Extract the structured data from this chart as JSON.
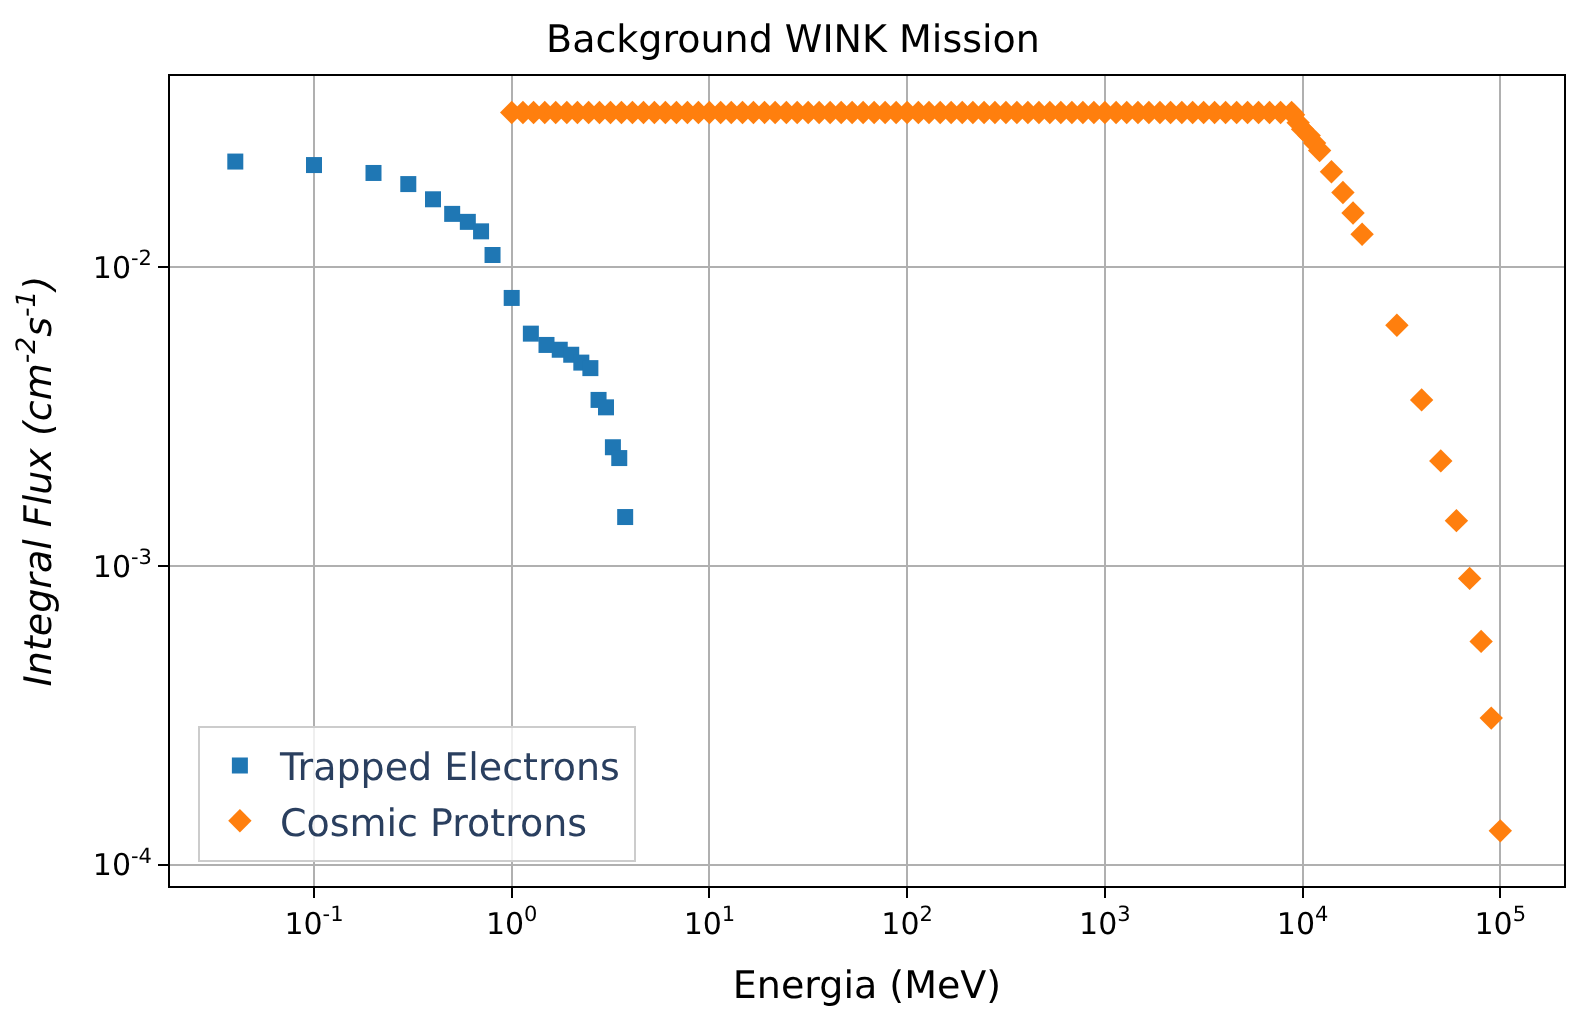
{
  "chart_data": {
    "type": "scatter",
    "title": "Background WINK Mission",
    "xlabel": "Energia (MeV)",
    "ylabel": "Integral Flux (cm$^{-2}$s$^{-1}$)",
    "log": "xy",
    "grid": true,
    "legend": "bottom left",
    "xlim": [
      0.0187,
      210000
    ],
    "ylim": [
      8.5e-05,
      0.0437
    ],
    "xticks": [
      {
        "value": 0.1,
        "label": "10$^{-1}$"
      },
      {
        "value": 1,
        "label": "10$^{0}$"
      },
      {
        "value": 10,
        "label": "10$^{1}$"
      },
      {
        "value": 100,
        "label": "10$^{2}$"
      },
      {
        "value": 1000,
        "label": "10$^{3}$"
      },
      {
        "value": 10000,
        "label": "10$^{4}$"
      },
      {
        "value": 100000,
        "label": "10$^{5}$"
      }
    ],
    "yticks": [
      {
        "value": 0.0001,
        "label": "10$^{-4}$"
      },
      {
        "value": 0.001,
        "label": "10$^{-3}$"
      },
      {
        "value": 0.01,
        "label": "10$^{-2}$"
      }
    ],
    "series": [
      {
        "name": "Trapped Electrons",
        "color": "#1f77b4",
        "marker": "square",
        "x": [
          0.04,
          0.1,
          0.2,
          0.3,
          0.4,
          0.5,
          0.6,
          0.7,
          0.8,
          1.0,
          1.25,
          1.5,
          1.75,
          2.0,
          2.25,
          2.5,
          2.75,
          3.0,
          3.25,
          3.5,
          3.75
        ],
        "values": [
          0.0226,
          0.022,
          0.0207,
          0.019,
          0.0169,
          0.0151,
          0.0142,
          0.0132,
          0.011,
          0.0079,
          0.006,
          0.0055,
          0.0053,
          0.0051,
          0.0048,
          0.0046,
          0.0036,
          0.0034,
          0.0025,
          0.0023,
          0.00146
        ]
      },
      {
        "name": "Cosmic Protrons",
        "color": "#ff7f0e",
        "marker": "diamond",
        "x": [
          1.0,
          1.14,
          1.29,
          1.47,
          1.67,
          1.9,
          2.15,
          2.45,
          2.78,
          3.16,
          3.59,
          4.08,
          4.64,
          5.27,
          5.99,
          6.81,
          7.74,
          8.8,
          10,
          11.4,
          12.9,
          14.7,
          16.7,
          19,
          21.5,
          24.5,
          27.8,
          31.6,
          35.9,
          40.8,
          46.4,
          52.7,
          59.9,
          68.1,
          77.4,
          88,
          100,
          114,
          129,
          147,
          167,
          190,
          215,
          245,
          278,
          316,
          359,
          408,
          464,
          527,
          599,
          681,
          774,
          880,
          1000,
          1140,
          1290,
          1470,
          1670,
          1900,
          2150,
          2450,
          2780,
          3160,
          3590,
          4080,
          4640,
          5270,
          5990,
          6810,
          7740,
          8800,
          9000,
          9500,
          10000,
          10800,
          11500,
          12200,
          14000,
          16000,
          18000,
          20000,
          30000,
          40000,
          50000,
          60000,
          70000,
          80000,
          90000,
          100000
        ],
        "values": [
          0.033,
          0.033,
          0.033,
          0.033,
          0.033,
          0.033,
          0.033,
          0.033,
          0.033,
          0.033,
          0.033,
          0.033,
          0.033,
          0.033,
          0.033,
          0.033,
          0.033,
          0.033,
          0.033,
          0.033,
          0.033,
          0.033,
          0.033,
          0.033,
          0.033,
          0.033,
          0.033,
          0.033,
          0.033,
          0.033,
          0.033,
          0.033,
          0.033,
          0.033,
          0.033,
          0.033,
          0.033,
          0.033,
          0.033,
          0.033,
          0.033,
          0.033,
          0.033,
          0.033,
          0.033,
          0.033,
          0.033,
          0.033,
          0.033,
          0.033,
          0.033,
          0.033,
          0.033,
          0.033,
          0.033,
          0.033,
          0.033,
          0.033,
          0.033,
          0.033,
          0.033,
          0.033,
          0.033,
          0.033,
          0.033,
          0.033,
          0.033,
          0.033,
          0.033,
          0.033,
          0.033,
          0.033,
          0.0324,
          0.0305,
          0.029,
          0.0276,
          0.0261,
          0.0246,
          0.0209,
          0.0178,
          0.0152,
          0.0129,
          0.0064,
          0.0036,
          0.00225,
          0.00142,
          0.00091,
          0.00056,
          0.00031,
          0.00013
        ]
      }
    ]
  }
}
